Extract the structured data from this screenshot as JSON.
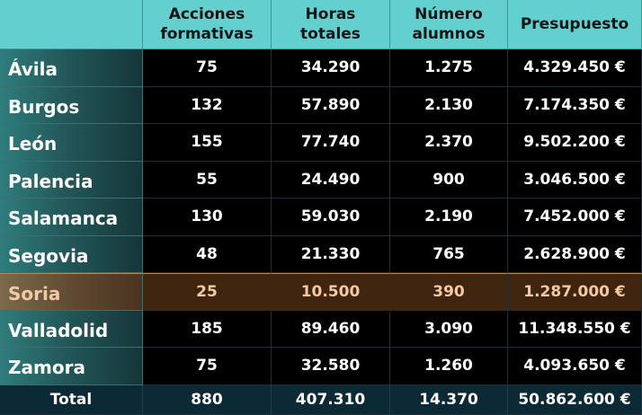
{
  "headers": {
    "col1": [
      "Acciones",
      "formativas"
    ],
    "col2": [
      "Horas",
      "totales"
    ],
    "col3": [
      "Número",
      "alumnos"
    ],
    "col4": [
      "Presupuesto"
    ]
  },
  "rows": [
    {
      "name": "Ávila",
      "acciones": "75",
      "horas": "34.290",
      "alumnos": "1.275",
      "presupuesto": "4.329.450 €"
    },
    {
      "name": "Burgos",
      "acciones": "132",
      "horas": "57.890",
      "alumnos": "2.130",
      "presupuesto": "7.174.350 €"
    },
    {
      "name": "León",
      "acciones": "155",
      "horas": "77.740",
      "alumnos": "2.370",
      "presupuesto": "9.502.200 €"
    },
    {
      "name": "Palencia",
      "acciones": "55",
      "horas": "24.490",
      "alumnos": "900",
      "presupuesto": "3.046.500 €"
    },
    {
      "name": "Salamanca",
      "acciones": "130",
      "horas": "59.030",
      "alumnos": "2.190",
      "presupuesto": "7.452.000 €"
    },
    {
      "name": "Segovia",
      "acciones": "48",
      "horas": "21.330",
      "alumnos": "765",
      "presupuesto": "2.628.900 €"
    },
    {
      "name": "Soria",
      "acciones": "25",
      "horas": "10.500",
      "alumnos": "390",
      "presupuesto": "1.287.000 €"
    },
    {
      "name": "Valladolid",
      "acciones": "185",
      "horas": "89.460",
      "alumnos": "3.090",
      "presupuesto": "11.348.550 €"
    },
    {
      "name": "Zamora",
      "acciones": "75",
      "horas": "32.580",
      "alumnos": "1.260",
      "presupuesto": "4.093.650 €"
    }
  ],
  "total": {
    "label": "Total",
    "acciones": "880",
    "horas": "407.310",
    "alumnos": "14.370",
    "presupuesto": "50.862.600 €"
  },
  "highlighted_row": "Soria",
  "colors": {
    "header_bg": "#63cfcf",
    "name_col_bg": "#2f7d7d",
    "highlight_bg": "#3f2510",
    "highlight_text": "#f3c9a3",
    "total_bg": "#0b2a35"
  }
}
